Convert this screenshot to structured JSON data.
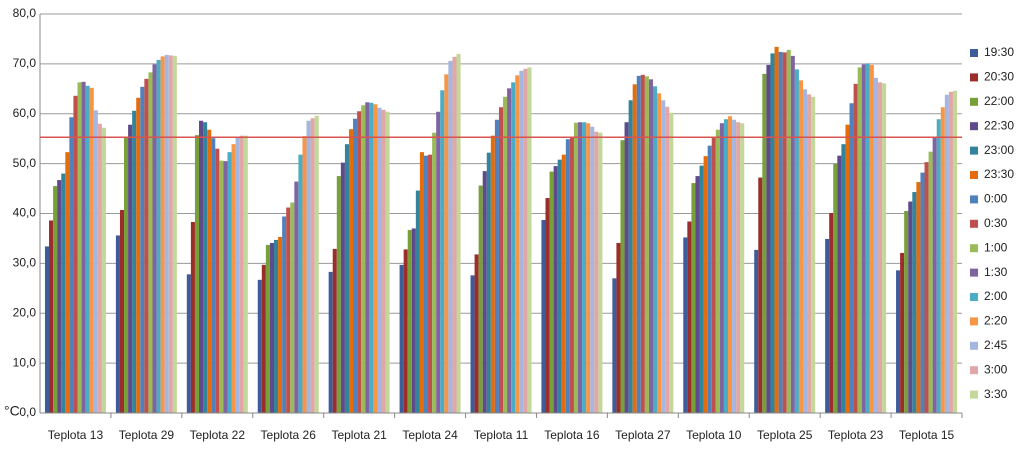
{
  "chart_data": {
    "type": "bar",
    "y_label": "°C",
    "categories": [
      "Teplota 13",
      "Teplota 29",
      "Teplota 22",
      "Teplota 26",
      "Teplota 21",
      "Teplota 24",
      "Teplota 11",
      "Teplota 16",
      "Teplota 27",
      "Teplota 10",
      "Teplota 25",
      "Teplota 23",
      "Teplota 15"
    ],
    "series": [
      {
        "name": "19:30",
        "color": "#3f5c9a",
        "values": [
          33.4,
          35.6,
          27.8,
          26.7,
          28.3,
          29.7,
          27.6,
          38.7,
          27.0,
          35.2,
          32.7,
          34.9,
          28.6
        ]
      },
      {
        "name": "20:30",
        "color": "#9b2d2a",
        "values": [
          38.6,
          40.7,
          38.3,
          29.7,
          32.9,
          32.8,
          31.8,
          43.1,
          34.1,
          38.4,
          47.2,
          40.1,
          32.1
        ]
      },
      {
        "name": "22:00",
        "color": "#77a03a",
        "values": [
          45.5,
          55.2,
          55.7,
          33.7,
          47.5,
          36.7,
          45.6,
          48.4,
          54.7,
          46.1,
          68.0,
          50.0,
          40.5
        ]
      },
      {
        "name": "22:30",
        "color": "#5f4b8b",
        "values": [
          46.7,
          57.8,
          58.6,
          34.1,
          50.2,
          37.0,
          48.5,
          49.5,
          58.3,
          47.5,
          69.8,
          51.6,
          42.4
        ]
      },
      {
        "name": "23:00",
        "color": "#31849b",
        "values": [
          48.0,
          60.6,
          58.3,
          34.7,
          53.9,
          44.6,
          52.2,
          50.8,
          62.7,
          49.6,
          72.1,
          53.9,
          44.3
        ]
      },
      {
        "name": "23:30",
        "color": "#e46c0a",
        "values": [
          52.3,
          63.2,
          56.8,
          35.3,
          56.9,
          52.3,
          55.6,
          51.8,
          65.9,
          51.5,
          73.4,
          57.8,
          46.3
        ]
      },
      {
        "name": "0:00",
        "color": "#4f81bd",
        "values": [
          59.3,
          65.4,
          55.1,
          39.4,
          59.0,
          51.6,
          58.8,
          54.9,
          67.6,
          53.6,
          72.4,
          62.1,
          48.2
        ]
      },
      {
        "name": "0:30",
        "color": "#c0504d",
        "values": [
          63.6,
          67.0,
          53.0,
          41.2,
          60.5,
          51.8,
          61.3,
          55.3,
          67.8,
          55.3,
          72.3,
          66.0,
          50.3
        ]
      },
      {
        "name": "1:00",
        "color": "#9bbb59",
        "values": [
          66.3,
          68.3,
          50.6,
          42.2,
          61.7,
          56.2,
          63.4,
          58.2,
          67.5,
          56.8,
          72.8,
          69.3,
          52.4
        ]
      },
      {
        "name": "1:30",
        "color": "#8064a2",
        "values": [
          66.4,
          69.9,
          50.5,
          46.4,
          62.3,
          60.4,
          65.1,
          58.3,
          66.9,
          58.1,
          71.6,
          69.9,
          55.4
        ]
      },
      {
        "name": "2:00",
        "color": "#4bacc6",
        "values": [
          65.6,
          70.8,
          52.3,
          51.8,
          62.2,
          64.7,
          66.3,
          58.3,
          65.5,
          58.9,
          68.9,
          70.1,
          58.9
        ]
      },
      {
        "name": "2:20",
        "color": "#f79646",
        "values": [
          65.2,
          71.5,
          53.9,
          55.5,
          61.9,
          67.9,
          67.7,
          58.1,
          64.1,
          59.5,
          66.7,
          69.8,
          61.3
        ]
      },
      {
        "name": "2:45",
        "color": "#a5b6e0",
        "values": [
          60.7,
          71.8,
          55.3,
          58.6,
          61.2,
          70.6,
          68.6,
          57.4,
          62.7,
          58.8,
          64.9,
          67.2,
          63.8
        ]
      },
      {
        "name": "3:00",
        "color": "#e0a7a6",
        "values": [
          58.0,
          71.7,
          55.6,
          59.1,
          60.8,
          71.4,
          69.0,
          56.4,
          61.4,
          58.3,
          63.9,
          66.3,
          64.4
        ]
      },
      {
        "name": "3:30",
        "color": "#c4d79b",
        "values": [
          57.2,
          71.6,
          55.6,
          59.6,
          60.4,
          72.0,
          69.3,
          56.2,
          60.2,
          58.1,
          63.4,
          66.1,
          64.6
        ]
      }
    ],
    "reference_line": {
      "value": 55.3,
      "color": "#d9534f"
    },
    "ylim": [
      0,
      80
    ],
    "yticks": [
      {
        "value": 0,
        "label": "0,0"
      },
      {
        "value": 10,
        "label": "10,0"
      },
      {
        "value": 20,
        "label": "20,0"
      },
      {
        "value": 30,
        "label": "30,0"
      },
      {
        "value": 40,
        "label": "40,0"
      },
      {
        "value": 50,
        "label": "50,0"
      },
      {
        "value": 60,
        "label": "60,0"
      },
      {
        "value": 70,
        "label": "70,0"
      },
      {
        "value": 80,
        "label": "80,0"
      }
    ],
    "grid": true,
    "legend": "right"
  }
}
